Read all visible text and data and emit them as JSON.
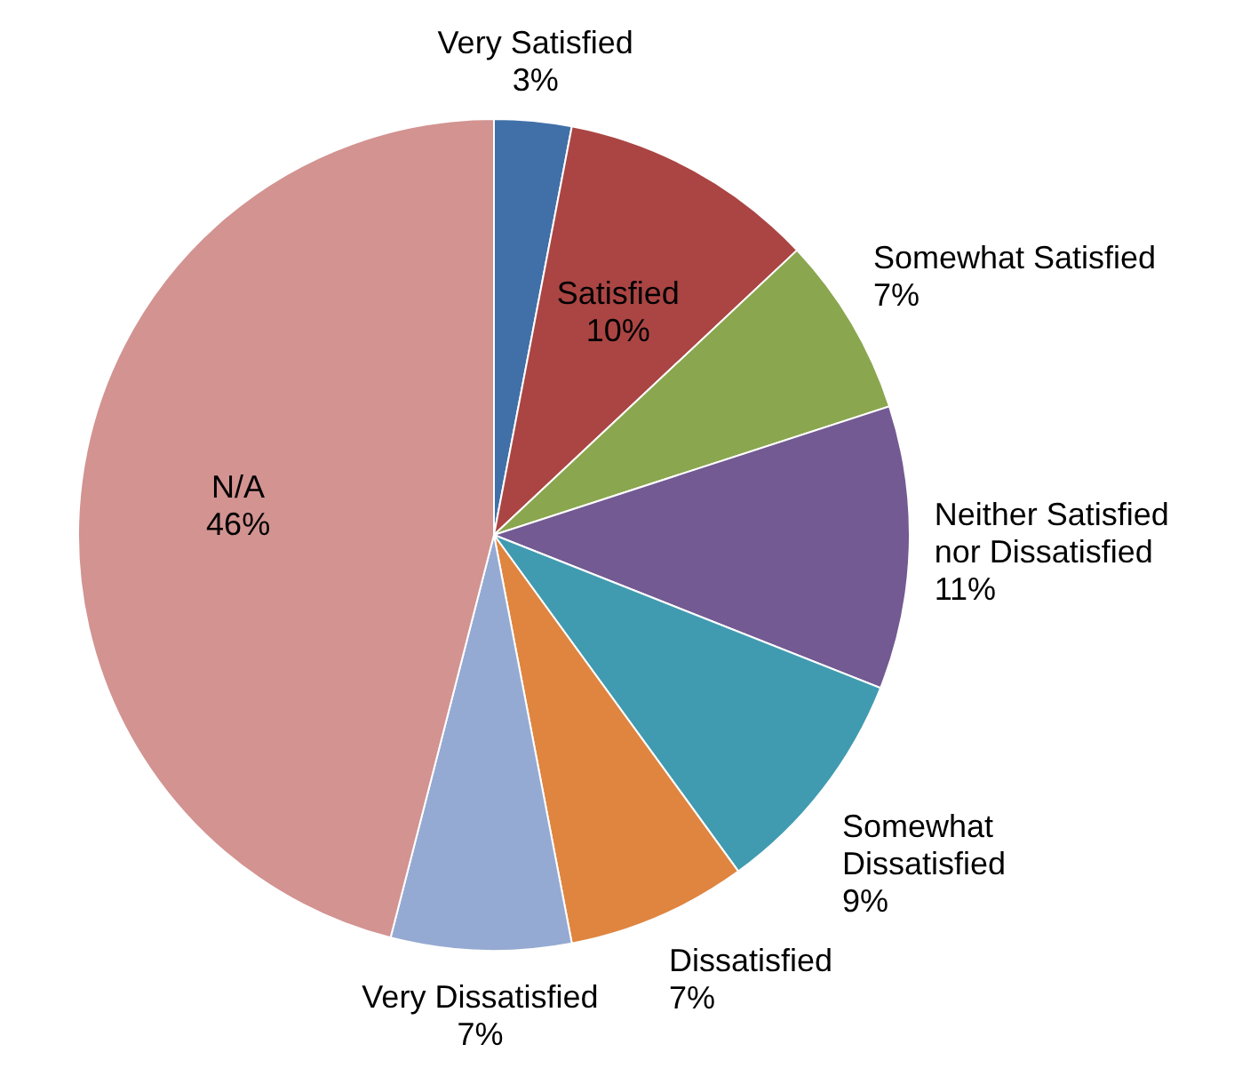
{
  "chart_data": {
    "type": "pie",
    "categories": [
      "Very Satisfied",
      "Satisfied",
      "Somewhat Satisfied",
      "Neither Satisfied nor Dissatisfied",
      "Somewhat Dissatisfied",
      "Dissatisfied",
      "Very Dissatisfied",
      "N/A"
    ],
    "values": [
      3,
      10,
      7,
      11,
      9,
      7,
      7,
      46
    ],
    "colors": [
      "#4170a8",
      "#aa4543",
      "#8aa64f",
      "#735a92",
      "#419bb0",
      "#df8540",
      "#95aad2",
      "#d29391"
    ],
    "value_labels": [
      "3%",
      "10%",
      "7%",
      "11%",
      "9%",
      "7%",
      "7%",
      "46%"
    ]
  }
}
